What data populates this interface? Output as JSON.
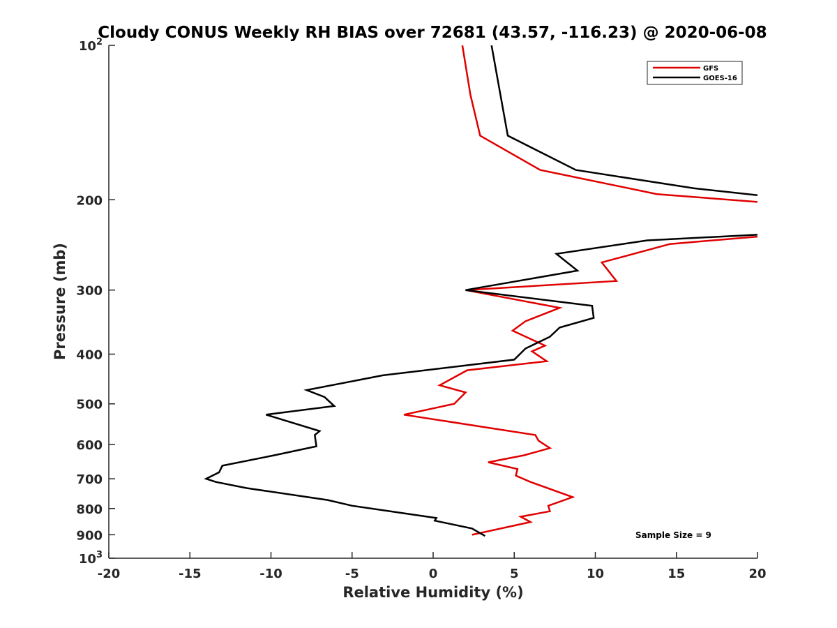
{
  "chart_data": {
    "type": "line",
    "title": "Cloudy CONUS Weekly RH BIAS over 72681 (43.57, -116.23) @ 2020-06-08",
    "xlabel": "Relative Humidity (%)",
    "ylabel": "Pressure (mb)",
    "xlim": [
      -20,
      20
    ],
    "ylim": [
      100,
      1000
    ],
    "yscale": "log",
    "y_reversed": true,
    "grid": false,
    "legend_position": "top-right",
    "x_ticks": [
      -20,
      -15,
      -10,
      -5,
      0,
      5,
      10,
      15,
      20
    ],
    "x_tick_labels": [
      "-20",
      "-15",
      "-10",
      "-5",
      "0",
      "5",
      "10",
      "15",
      "20"
    ],
    "y_ticks": [
      100,
      200,
      300,
      400,
      500,
      600,
      700,
      800,
      900,
      1000
    ],
    "y_tick_labels": [
      "10^2",
      "200",
      "300",
      "400",
      "500",
      "600",
      "700",
      "800",
      "900",
      "10^3"
    ],
    "annotation": "Sample Size = 9",
    "series": [
      {
        "name": "GFS",
        "color": "#e00000",
        "segments": [
          {
            "x": [
              1.8,
              2.3,
              2.9,
              6.6,
              13.8,
              20.0
            ],
            "y": [
              100,
              125,
              150,
              175,
              195,
              202
            ]
          },
          {
            "x": [
              20.0,
              14.6,
              10.4,
              11.3,
              2.0,
              7.8,
              5.7,
              4.9,
              6.9,
              6.1,
              7.0,
              2.1,
              0.4,
              2.0,
              1.3,
              -1.8,
              6.3,
              6.5,
              7.2,
              5.6,
              3.4,
              5.2,
              5.1,
              6.0,
              8.6,
              7.1,
              7.2,
              5.4,
              6.0,
              2.4
            ],
            "y": [
              236,
              244,
              265,
              288,
              300,
              325,
              345,
              360,
              385,
              395,
              413,
              430,
              460,
              475,
              500,
              525,
              575,
              590,
              610,
              630,
              650,
              670,
              690,
              710,
              760,
              790,
              810,
              830,
              850,
              900
            ]
          }
        ]
      },
      {
        "name": "GOES-16",
        "color": "#000000",
        "segments": [
          {
            "x": [
              3.6,
              4.6,
              8.8,
              16.1,
              20.0
            ],
            "y": [
              100,
              150,
              175,
              190,
              196
            ]
          },
          {
            "x": [
              20.0,
              13.2,
              7.6,
              8.9,
              2.0,
              9.8,
              9.9,
              7.8,
              7.2,
              5.7,
              5.0,
              -3.1,
              -7.8,
              -6.7,
              -6.1,
              -10.3,
              -7.0,
              -7.3,
              -7.2,
              -9.8,
              -13.0,
              -13.2,
              -14.0,
              -13.4,
              -11.5,
              -6.5,
              -5.0,
              0.2,
              0.1,
              2.4,
              2.8,
              3.2
            ],
            "y": [
              234,
              240,
              255,
              275,
              300,
              322,
              340,
              355,
              370,
              390,
              410,
              440,
              470,
              485,
              505,
              525,
              565,
              575,
              605,
              630,
              660,
              680,
              700,
              710,
              730,
              770,
              790,
              835,
              845,
              875,
              890,
              905
            ]
          }
        ]
      }
    ]
  }
}
